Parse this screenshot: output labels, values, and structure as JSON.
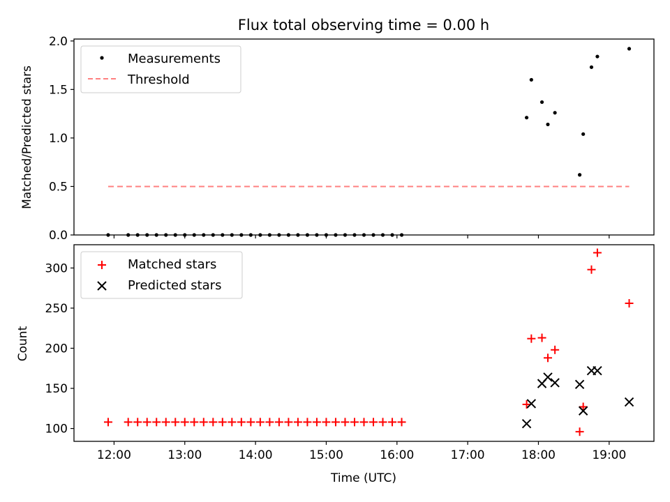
{
  "chart_data": [
    {
      "type": "scatter",
      "title": "Flux total observing time = 0.00 h",
      "xlabel": "",
      "ylabel": "Matched/Predicted stars",
      "ylim": [
        0,
        2.02
      ],
      "yticks": [
        "0.0",
        "0.5",
        "1.0",
        "1.5",
        "2.0"
      ],
      "legend_placement": "top-left",
      "series": [
        {
          "name": "Measurements",
          "color": "#000000",
          "marker": "dot",
          "x": [
            "11:55",
            "12:12",
            "12:20",
            "12:28",
            "12:36",
            "12:44",
            "12:52",
            "13:00",
            "13:08",
            "13:16",
            "13:24",
            "13:32",
            "13:40",
            "13:48",
            "13:56",
            "14:04",
            "14:12",
            "14:20",
            "14:28",
            "14:36",
            "14:44",
            "14:52",
            "15:00",
            "15:08",
            "15:16",
            "15:24",
            "15:32",
            "15:40",
            "15:48",
            "15:56",
            "16:04",
            "17:50",
            "17:54",
            "18:03",
            "18:08",
            "18:14",
            "18:35",
            "18:38",
            "18:45",
            "18:50",
            "19:17"
          ],
          "y": [
            0,
            0,
            0,
            0,
            0,
            0,
            0,
            0,
            0,
            0,
            0,
            0,
            0,
            0,
            0,
            0,
            0,
            0,
            0,
            0,
            0,
            0,
            0,
            0,
            0,
            0,
            0,
            0,
            0,
            0,
            0,
            1.21,
            1.6,
            1.37,
            1.14,
            1.26,
            0.62,
            1.04,
            1.73,
            1.84,
            1.92
          ]
        },
        {
          "name": "Threshold",
          "color": "#ff8080",
          "style": "dashed",
          "x": [
            "11:55",
            "19:17"
          ],
          "y": [
            0.5,
            0.5
          ]
        }
      ]
    },
    {
      "type": "scatter",
      "title": "",
      "xlabel": "Time (UTC)",
      "ylabel": "Count",
      "ylim": [
        84,
        329
      ],
      "yticks": [
        "100",
        "150",
        "200",
        "250",
        "300"
      ],
      "xticks": [
        "12:00",
        "13:00",
        "14:00",
        "15:00",
        "16:00",
        "17:00",
        "18:00",
        "19:00"
      ],
      "legend_placement": "top-left",
      "series": [
        {
          "name": "Matched stars",
          "color": "#ff0000",
          "marker": "plus",
          "x": [
            "11:55",
            "12:12",
            "12:20",
            "12:28",
            "12:36",
            "12:44",
            "12:52",
            "13:00",
            "13:08",
            "13:16",
            "13:24",
            "13:32",
            "13:40",
            "13:48",
            "13:56",
            "14:04",
            "14:12",
            "14:20",
            "14:28",
            "14:36",
            "14:44",
            "14:52",
            "15:00",
            "15:08",
            "15:16",
            "15:24",
            "15:32",
            "15:40",
            "15:48",
            "15:56",
            "16:04",
            "17:50",
            "17:54",
            "18:03",
            "18:08",
            "18:14",
            "18:35",
            "18:38",
            "18:45",
            "18:50",
            "19:17"
          ],
          "y": [
            108,
            108,
            108,
            108,
            108,
            108,
            108,
            108,
            108,
            108,
            108,
            108,
            108,
            108,
            108,
            108,
            108,
            108,
            108,
            108,
            108,
            108,
            108,
            108,
            108,
            108,
            108,
            108,
            108,
            108,
            108,
            130,
            212,
            213,
            188,
            198,
            96,
            127,
            298,
            319,
            256
          ]
        },
        {
          "name": "Predicted stars",
          "color": "#000000",
          "marker": "x",
          "x": [
            "17:50",
            "17:54",
            "18:03",
            "18:08",
            "18:14",
            "18:35",
            "18:38",
            "18:45",
            "18:50",
            "19:17"
          ],
          "y": [
            106,
            131,
            156,
            164,
            157,
            155,
            122,
            172,
            172,
            133
          ]
        }
      ]
    }
  ]
}
